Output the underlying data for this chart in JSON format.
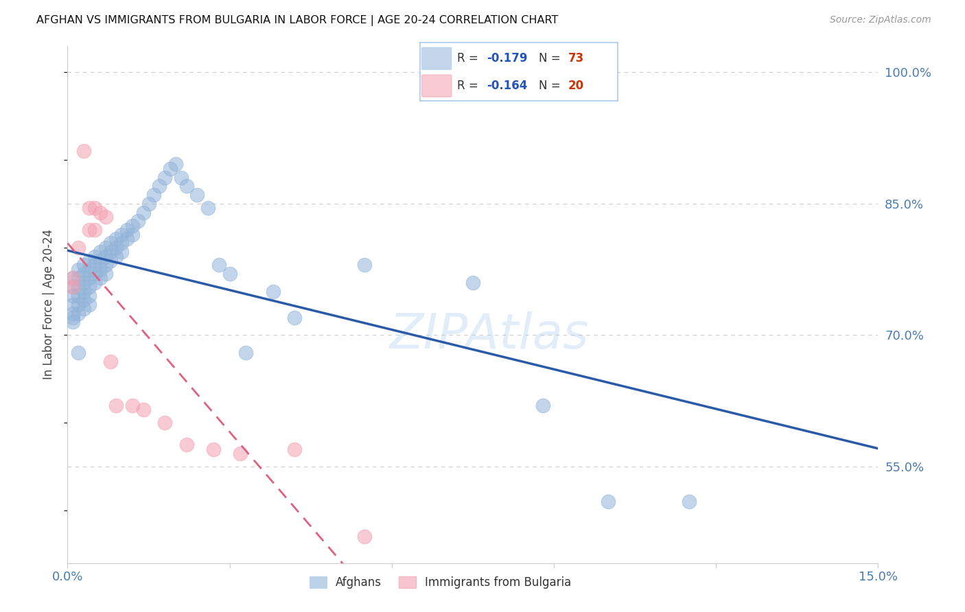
{
  "title": "AFGHAN VS IMMIGRANTS FROM BULGARIA IN LABOR FORCE | AGE 20-24 CORRELATION CHART",
  "source": "Source: ZipAtlas.com",
  "ylabel": "In Labor Force | Age 20-24",
  "xlim": [
    0.0,
    0.15
  ],
  "ylim": [
    0.44,
    1.03
  ],
  "xtick_positions": [
    0.0,
    0.03,
    0.06,
    0.09,
    0.12,
    0.15
  ],
  "xtick_labels": [
    "0.0%",
    "",
    "",
    "",
    "",
    "15.0%"
  ],
  "yticks_right": [
    0.55,
    0.7,
    0.85,
    1.0
  ],
  "ytick_labels_right": [
    "55.0%",
    "70.0%",
    "85.0%",
    "100.0%"
  ],
  "blue_color": "#92B4D9",
  "pink_color": "#F4A0B0",
  "line_blue": "#2B5BA8",
  "line_pink": "#E06080",
  "axis_label_color": "#4B7BB5",
  "blue_x": [
    0.001,
    0.001,
    0.001,
    0.001,
    0.001,
    0.001,
    0.001,
    0.002,
    0.002,
    0.002,
    0.002,
    0.002,
    0.002,
    0.002,
    0.003,
    0.003,
    0.003,
    0.003,
    0.003,
    0.003,
    0.004,
    0.004,
    0.004,
    0.004,
    0.004,
    0.004,
    0.005,
    0.005,
    0.005,
    0.005,
    0.006,
    0.006,
    0.006,
    0.006,
    0.007,
    0.007,
    0.007,
    0.007,
    0.008,
    0.008,
    0.008,
    0.009,
    0.009,
    0.009,
    0.01,
    0.01,
    0.01,
    0.011,
    0.011,
    0.012,
    0.012,
    0.013,
    0.014,
    0.015,
    0.016,
    0.017,
    0.018,
    0.019,
    0.02,
    0.021,
    0.022,
    0.024,
    0.026,
    0.028,
    0.03,
    0.033,
    0.038,
    0.042,
    0.055,
    0.075,
    0.088,
    0.1,
    0.115
  ],
  "blue_y": [
    0.765,
    0.755,
    0.745,
    0.735,
    0.725,
    0.72,
    0.715,
    0.775,
    0.765,
    0.755,
    0.745,
    0.735,
    0.725,
    0.68,
    0.78,
    0.77,
    0.76,
    0.75,
    0.74,
    0.73,
    0.785,
    0.775,
    0.765,
    0.755,
    0.745,
    0.735,
    0.79,
    0.78,
    0.77,
    0.76,
    0.795,
    0.785,
    0.775,
    0.765,
    0.8,
    0.79,
    0.78,
    0.77,
    0.805,
    0.795,
    0.785,
    0.81,
    0.8,
    0.79,
    0.815,
    0.805,
    0.795,
    0.82,
    0.81,
    0.825,
    0.815,
    0.83,
    0.84,
    0.85,
    0.86,
    0.87,
    0.88,
    0.89,
    0.895,
    0.88,
    0.87,
    0.86,
    0.845,
    0.78,
    0.77,
    0.68,
    0.75,
    0.72,
    0.78,
    0.76,
    0.62,
    0.51,
    0.51
  ],
  "pink_x": [
    0.001,
    0.001,
    0.002,
    0.003,
    0.004,
    0.004,
    0.005,
    0.005,
    0.006,
    0.007,
    0.008,
    0.009,
    0.012,
    0.014,
    0.018,
    0.022,
    0.027,
    0.032,
    0.042,
    0.055
  ],
  "pink_y": [
    0.765,
    0.755,
    0.8,
    0.91,
    0.845,
    0.82,
    0.845,
    0.82,
    0.84,
    0.835,
    0.67,
    0.62,
    0.62,
    0.615,
    0.6,
    0.575,
    0.57,
    0.565,
    0.57,
    0.47
  ],
  "legend_r1": "-0.179",
  "legend_n1": "73",
  "legend_r2": "-0.164",
  "legend_n2": "20",
  "legend_r_color": "#2255BB",
  "legend_n_color": "#CC3300",
  "watermark_text": "ZIPAtlas",
  "watermark_color": "#AACCEE",
  "bottom_legend_labels": [
    "Afghans",
    "Immigrants from Bulgaria"
  ]
}
